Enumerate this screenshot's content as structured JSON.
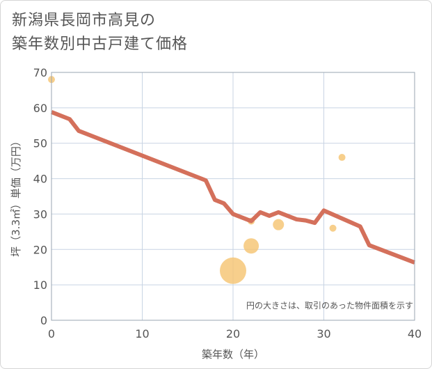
{
  "title_line1": "新潟県長岡市高見の",
  "title_line2": "築年数別中古戸建て価格",
  "chart_data": {
    "type": "scatter",
    "title": "新潟県長岡市高見の築年数別中古戸建て価格",
    "xlabel": "築年数（年）",
    "ylabel": "坪（3.3㎡）単価（万円）",
    "xlim": [
      0,
      40
    ],
    "ylim": [
      0,
      70
    ],
    "xticks": [
      0,
      10,
      20,
      30,
      40
    ],
    "yticks": [
      0,
      10,
      20,
      30,
      40,
      50,
      60,
      70
    ],
    "grid": true,
    "note": "円の大きさは、取引のあった物件面積を示す",
    "colors": {
      "trend": "#d4705b",
      "bubble": "#f5c36f",
      "grid": "#c8d4e3",
      "axis_text": "#555555"
    },
    "bubbles": [
      {
        "x": 0,
        "y": 68,
        "size": 1
      },
      {
        "x": 20,
        "y": 14,
        "size": 5
      },
      {
        "x": 22,
        "y": 21,
        "size": 3
      },
      {
        "x": 22,
        "y": 28,
        "size": 1
      },
      {
        "x": 25,
        "y": 27,
        "size": 2
      },
      {
        "x": 31,
        "y": 26,
        "size": 1
      },
      {
        "x": 32,
        "y": 46,
        "size": 1
      }
    ],
    "trend": {
      "x": [
        0,
        2,
        3,
        17,
        18,
        19,
        20,
        22,
        23,
        24,
        25,
        27,
        28,
        29,
        30,
        34,
        35,
        40
      ],
      "y": [
        58.8,
        56.8,
        53.5,
        39.5,
        34,
        33,
        30,
        28,
        30.5,
        29.5,
        30.5,
        28.5,
        28.2,
        27.5,
        31,
        26.5,
        21.2,
        16.3
      ]
    }
  }
}
